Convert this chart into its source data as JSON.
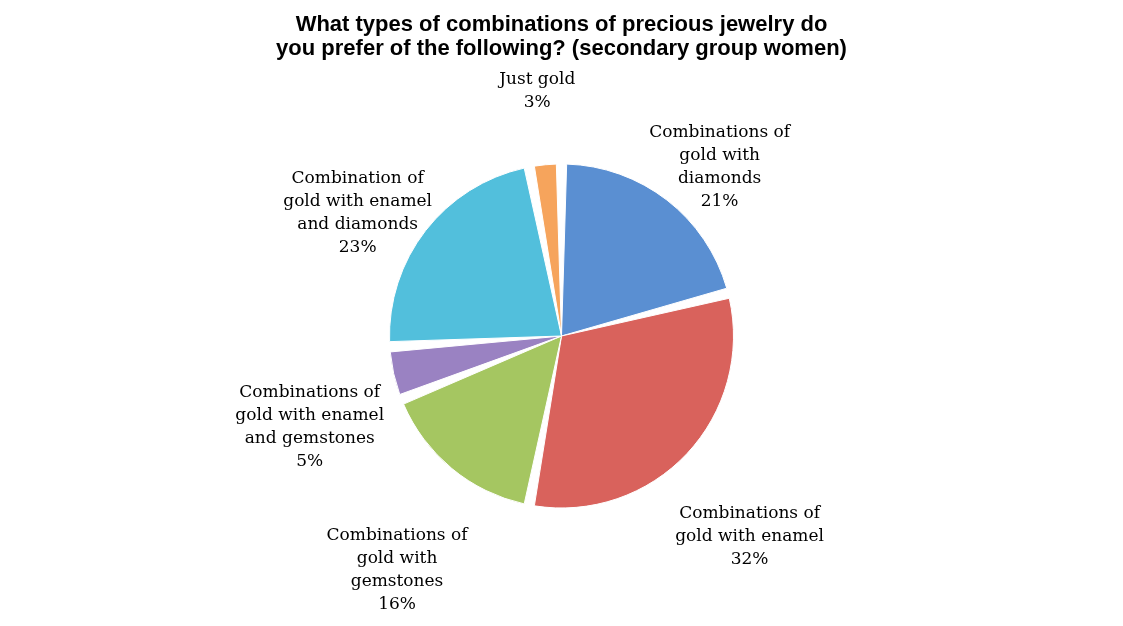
{
  "chart_data": {
    "type": "pie",
    "title": "What types of combinations of precious jewelry do you prefer of the following? (secondary group women)",
    "categories": [
      "Combinations of gold with diamonds",
      "Combinations of gold with enamel",
      "Combinations of gold with gemstones",
      "Combinations of gold with enamel and gemstones",
      "Combination of gold with enamel and diamonds",
      "Just gold"
    ],
    "values": [
      21,
      32,
      16,
      5,
      23,
      3
    ],
    "value_labels": [
      "21%",
      "32%",
      "16%",
      "5%",
      "23%",
      "3%"
    ],
    "colors": [
      "#5a8fd2",
      "#d9625c",
      "#a5c661",
      "#9a82c2",
      "#52bfdc",
      "#f6a45c"
    ],
    "legend": false
  }
}
